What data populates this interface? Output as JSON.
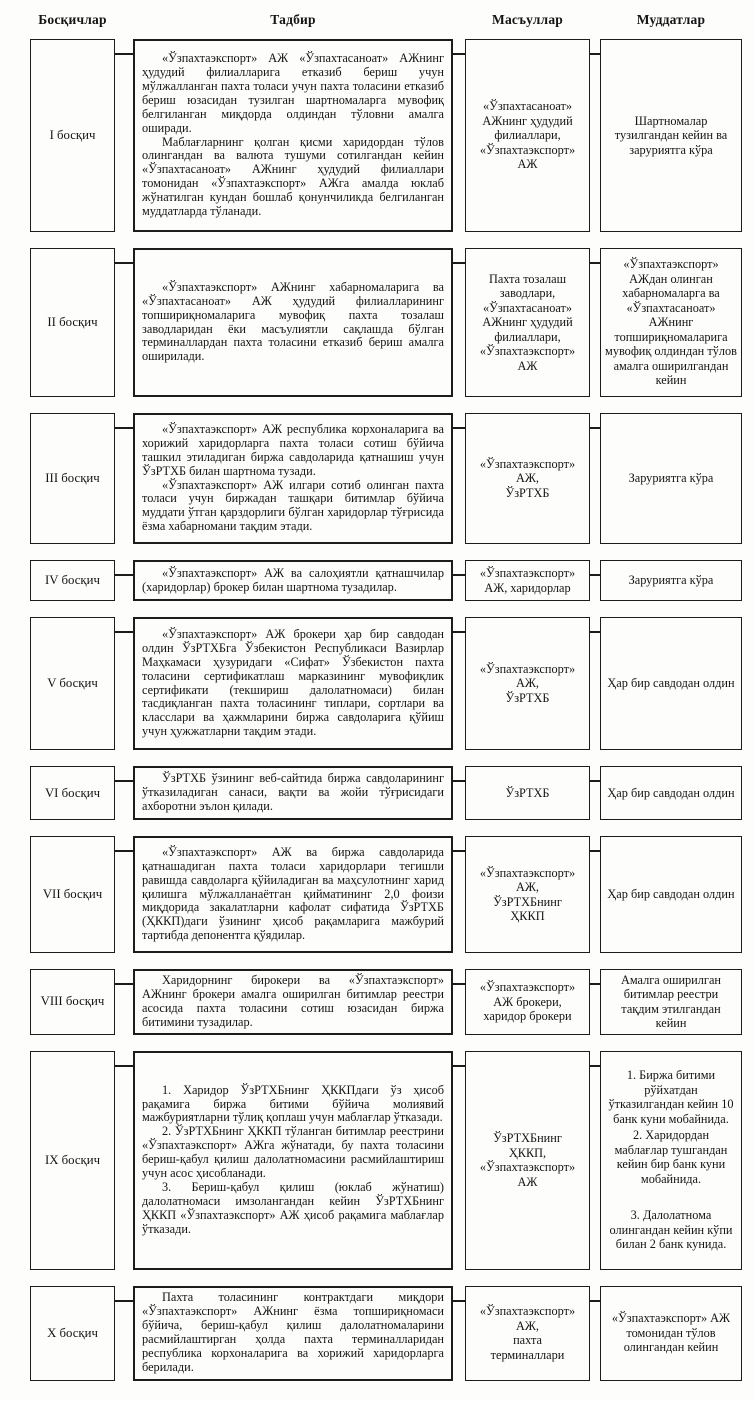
{
  "header": {
    "columns": [
      "Босқичлар",
      "Тадбир",
      "Масъуллар",
      "Муддатлар"
    ]
  },
  "rows": [
    {
      "stage": "I босқич",
      "activity": [
        "«Ўзпахтаэкспорт» АЖ «Ўзпахтасаноат» АЖнинг ҳудудий филиалларига етказиб бериш учун мўлжалланган пахта толаси учун пахта толасини етказиб бериш юзасидан тузилган шартномаларга мувофиқ белгиланган миқдорда олдиндан тўловни амалга оширади.",
        "Маблағларнинг қолган қисми харидордан тўлов олингандан ва валюта тушуми сотилгандан кейин «Ўзпахтасаноат» АЖнинг ҳудудий филиаллари томонидан «Ўзпахтаэкспорт» АЖга амалда юклаб жўнатилган кундан бошлаб қонунчиликда белгиланган муддатларда тўланади."
      ],
      "responsible": [
        "«Ўзпахтасаноат»",
        "АЖнинг ҳудудий",
        "филиаллари,",
        "«Ўзпахтаэкспорт»",
        "АЖ"
      ],
      "deadline": [
        "Шартномалар тузилгандан кейин ва заруриятга кўра"
      ]
    },
    {
      "stage": "II босқич",
      "activity": [
        "«Ўзпахтаэкспорт» АЖнинг хабарномаларига ва «Ўзпахтасаноат» АЖ ҳудудий филиалларининг топшириқномаларига мувофиқ пахта тозалаш заводларидан ёки масъулиятли сақлашда бўлган терминаллардан пахта толасини етказиб бериш амалга оширилади."
      ],
      "responsible": [
        "Пахта тозалаш",
        "заводлари,",
        "«Ўзпахтасаноат»",
        "АЖнинг ҳудудий",
        "филиаллари,",
        "«Ўзпахтаэкспорт»",
        "АЖ"
      ],
      "deadline": [
        "«Ўзпахтаэкспорт» АЖдан олинган хабарномаларга ва «Ўзпахтасаноат» АЖнинг топшириқномаларига мувофиқ олдиндан тўлов амалга оширилгандан кейин"
      ]
    },
    {
      "stage": "III босқич",
      "activity": [
        "«Ўзпахтаэкспорт» АЖ республика корхоналарига ва хорижий харидорларга пахта толаси сотиш бўйича ташкил этиладиган биржа савдоларида қатнашиш учун ЎзРТХБ билан шартнома тузади.",
        "«Ўзпахтаэкспорт» АЖ илгари сотиб олинган пахта толаси учун биржадан ташқари битимлар бўйича муддати ўтган қарздорлиги бўлган харидорлар тўғрисида ёзма хабарномани тақдим этади."
      ],
      "responsible": [
        "«Ўзпахтаэкспорт»",
        "АЖ,",
        "ЎзРТХБ"
      ],
      "deadline": [
        "Заруриятга кўра"
      ]
    },
    {
      "stage": "IV босқич",
      "activity": [
        "«Ўзпахтаэкспорт» АЖ ва салоҳиятли қатнашчилар (харидорлар) брокер билан шартнома тузадилар."
      ],
      "responsible": [
        "«Ўзпахтаэкспорт»",
        "АЖ, харидорлар"
      ],
      "deadline": [
        "Заруриятга кўра"
      ]
    },
    {
      "stage": "V босқич",
      "activity": [
        "«Ўзпахтаэкспорт» АЖ брокери ҳар бир савдодан олдин ЎзРТХБга Ўзбекистон Республикаси Вазирлар Маҳкамаси ҳузуридаги «Сифат» Ўзбекистон пахта толасини сертификатлаш марказининг мувофиқлик сертификати (текшириш далолатномаси) билан тасдиқланган пахта толасининг типлари, сортлари ва класслари ва ҳажмларини биржа савдоларига қўйиш учун ҳужжатларни тақдим этади."
      ],
      "responsible": [
        "«Ўзпахтаэкспорт»",
        "АЖ,",
        "ЎзРТХБ"
      ],
      "deadline": [
        "Ҳар бир савдодан олдин"
      ]
    },
    {
      "stage": "VI босқич",
      "activity": [
        "ЎзРТХБ ўзининг веб-сайтида биржа савдоларининг ўтказиладиган санаси, вақти ва жойи тўғрисидаги ахборотни эълон қилади."
      ],
      "responsible": [
        "ЎзРТХБ"
      ],
      "deadline": [
        "Ҳар бир савдодан олдин"
      ]
    },
    {
      "stage": "VII босқич",
      "activity": [
        "«Ўзпахтаэкспорт» АЖ ва биржа савдоларида қатнашадиган пахта толаси харидорлари тегишли равишда савдоларга қўйиладиган ва маҳсулотнинг харид қилишга мўлжалланаётган қийматининг 2,0 фоизи миқдорида закалатларни кафолат сифатида ЎзРТХБ (ҲККП)даги ўзининг ҳисоб рақамларига мажбурий тартибда депонентга қўядилар."
      ],
      "responsible": [
        "«Ўзпахтаэкспорт»",
        "АЖ,",
        "ЎзРТХБнинг",
        "ҲККП"
      ],
      "deadline": [
        "Ҳар бир савдодан олдин"
      ]
    },
    {
      "stage": "VIII босқич",
      "activity": [
        "Харидорнинг бирокери ва «Ўзпахтаэкспорт» АЖнинг брокери амалга оширилган битимлар реестри асосида пахта толасини сотиш юзасидан биржа битимини тузадилар."
      ],
      "responsible": [
        "«Ўзпахтаэкспорт»",
        "АЖ брокери,",
        "харидор брокери"
      ],
      "deadline": [
        "Амалга оширилган битимлар реестри тақдим этилгандан кейин"
      ]
    },
    {
      "stage": "IX босқич",
      "activity": [
        "1. Харидор ЎзРТХБнинг ҲККПдаги ўз ҳисоб рақамига биржа битими бўйича молиявий мажбуриятларни тўлиқ қоплаш учун маблағлар ўтказади.",
        "2. ЎзРТХБнинг ҲККП тўланган битимлар реестрини «Ўзпахтаэкспорт» АЖга жўнатади, бу пахта толасини бериш-қабул қилиш далолатномасини расмийлаштириш учун асос ҳисобланади.",
        "3. Бериш-қабул қилиш (юклаб жўнатиш) далолатномаси имзолангандан кейин ЎзРТХБнинг ҲККП «Ўзпахтаэкспорт» АЖ ҳисоб рақамига маблағлар ўтказади."
      ],
      "responsible": [
        "ЎзРТХБнинг",
        "ҲККП,",
        "«Ўзпахтаэкспорт»",
        "АЖ"
      ],
      "deadline": [
        "1. Биржа битими рўйхатдан ўтказилгандан кейин 10 банк куни мобайнида.",
        "2. Харидордан маблағлар тушгандан кейин бир банк куни мобайнида.",
        "3. Далолатнома олингандан кейин кўпи билан 2 банк кунида."
      ]
    },
    {
      "stage": "X босқич",
      "activity": [
        "Пахта толасининг контрактдаги миқдори «Ўзпахтаэкспорт» АЖнинг ёзма топшириқномаси бўйича, бериш-қабул қилиш далолатномаларини расмийлаштирган ҳолда пахта терминалларидан республика корхоналарига ва хорижий харидорларга берилади."
      ],
      "responsible": [
        "«Ўзпахтаэкспорт»",
        "АЖ,",
        "пахта",
        "терминаллари"
      ],
      "deadline": [
        "«Ўзпахтаэкспорт» АЖ томонидан тўлов олингандан кейин"
      ]
    }
  ]
}
